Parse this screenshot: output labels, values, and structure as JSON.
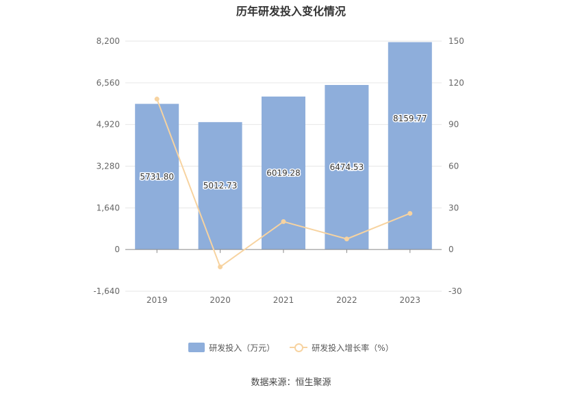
{
  "chart_data": {
    "type": "bar",
    "title": "历年研发投入变化情况",
    "categories": [
      "2019",
      "2020",
      "2021",
      "2022",
      "2023"
    ],
    "series": [
      {
        "name": "研发投入（万元）",
        "type": "bar",
        "axis": "left",
        "values": [
          5731.8,
          5012.73,
          6019.28,
          6474.53,
          8159.77
        ],
        "labels": [
          "5731.80",
          "5012.73",
          "6019.28",
          "6474.53",
          "8159.77"
        ],
        "color": "#8eaedb"
      },
      {
        "name": "研发投入增长率（%）",
        "type": "line",
        "axis": "right",
        "values": [
          108.3,
          -12.5,
          20.1,
          7.6,
          26.0
        ],
        "color": "#f7d3a0"
      }
    ],
    "y_left": {
      "ylim": [
        -1640,
        8200
      ],
      "ticks": [
        -1640,
        0,
        1640,
        3280,
        4920,
        6560,
        8200
      ],
      "tick_labels": [
        "-1,640",
        "0",
        "1,640",
        "3,280",
        "4,920",
        "6,560",
        "8,200"
      ]
    },
    "y_right": {
      "ylim": [
        -30,
        150
      ],
      "ticks": [
        -30,
        0,
        30,
        60,
        90,
        120,
        150
      ],
      "tick_labels": [
        "-30",
        "0",
        "30",
        "60",
        "90",
        "120",
        "150"
      ]
    },
    "grid": true,
    "legend": "bottom-center"
  },
  "legend": {
    "bar_label": "研发投入（万元）",
    "line_label": "研发投入增长率（%）"
  },
  "source": "数据来源：恒生聚源"
}
